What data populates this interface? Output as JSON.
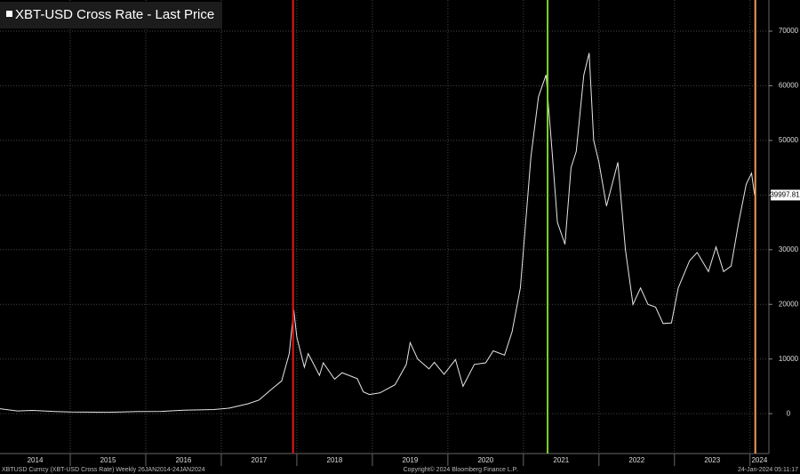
{
  "chart_data": {
    "type": "line",
    "title": "XBT-USD Cross Rate - Last Price",
    "footer_left": "XBTUSD Curncy (XBT-USD Cross Rate)  Weekly 26JAN2014-24JAN2024",
    "footer_center": "Copyright© 2024 Bloomberg Finance L.P.",
    "footer_right": "24-Jan-2024 05:11:17",
    "last_value": 39997.81,
    "xlim": [
      2014.07,
      2024.25
    ],
    "ylim": [
      -7300,
      75700
    ],
    "xticks": [
      {
        "value": 2014,
        "label": "2014"
      },
      {
        "value": 2015,
        "label": "2015"
      },
      {
        "value": 2016,
        "label": "2016"
      },
      {
        "value": 2017,
        "label": "2017"
      },
      {
        "value": 2018,
        "label": "2018"
      },
      {
        "value": 2019,
        "label": "2019"
      },
      {
        "value": 2020,
        "label": "2020"
      },
      {
        "value": 2021,
        "label": "2021"
      },
      {
        "value": 2022,
        "label": "2022"
      },
      {
        "value": 2023,
        "label": "2023"
      },
      {
        "value": 2024,
        "label": "2024"
      }
    ],
    "yticks": [
      0,
      10000,
      20000,
      30000,
      40000,
      50000,
      60000,
      70000
    ],
    "grid": true,
    "vlines": [
      {
        "x": 2017.95,
        "color": "#e8141c"
      },
      {
        "x": 2021.32,
        "color": "#7fd02a"
      },
      {
        "x": 2024.07,
        "color": "#f39a5c"
      }
    ],
    "series": [
      {
        "color": "#e6e6e6",
        "x": [
          2014.07,
          2014.3,
          2014.5,
          2014.8,
          2015.0,
          2015.5,
          2015.9,
          2016.2,
          2016.5,
          2016.9,
          2017.1,
          2017.35,
          2017.5,
          2017.65,
          2017.8,
          2017.9,
          2017.96,
          2018.0,
          2018.1,
          2018.15,
          2018.3,
          2018.35,
          2018.5,
          2018.6,
          2018.8,
          2018.88,
          2018.96,
          2019.1,
          2019.3,
          2019.45,
          2019.5,
          2019.6,
          2019.75,
          2019.82,
          2019.95,
          2020.1,
          2020.2,
          2020.35,
          2020.5,
          2020.6,
          2020.75,
          2020.85,
          2020.96,
          2021.03,
          2021.1,
          2021.2,
          2021.3,
          2021.38,
          2021.45,
          2021.55,
          2021.63,
          2021.7,
          2021.8,
          2021.87,
          2021.93,
          2022.0,
          2022.1,
          2022.25,
          2022.35,
          2022.45,
          2022.55,
          2022.65,
          2022.75,
          2022.85,
          2022.96,
          2023.05,
          2023.2,
          2023.3,
          2023.45,
          2023.55,
          2023.65,
          2023.75,
          2023.85,
          2023.95,
          2024.02,
          2024.06
        ],
        "values": [
          900,
          500,
          600,
          380,
          300,
          250,
          400,
          420,
          650,
          750,
          1000,
          1800,
          2500,
          4300,
          6000,
          11000,
          19000,
          14000,
          8500,
          11000,
          7000,
          9300,
          6300,
          7500,
          6400,
          4000,
          3500,
          3800,
          5300,
          9000,
          13000,
          10000,
          8200,
          9400,
          7200,
          9900,
          5000,
          9000,
          9300,
          11500,
          10700,
          15000,
          23000,
          35000,
          47000,
          58000,
          62000,
          48000,
          35000,
          31000,
          45000,
          48000,
          62000,
          66000,
          50000,
          46000,
          38000,
          46000,
          30000,
          20000,
          23000,
          20000,
          19500,
          16500,
          16600,
          23000,
          28000,
          29500,
          26000,
          30500,
          26000,
          27000,
          35000,
          42000,
          44000,
          39997.81
        ]
      }
    ]
  }
}
